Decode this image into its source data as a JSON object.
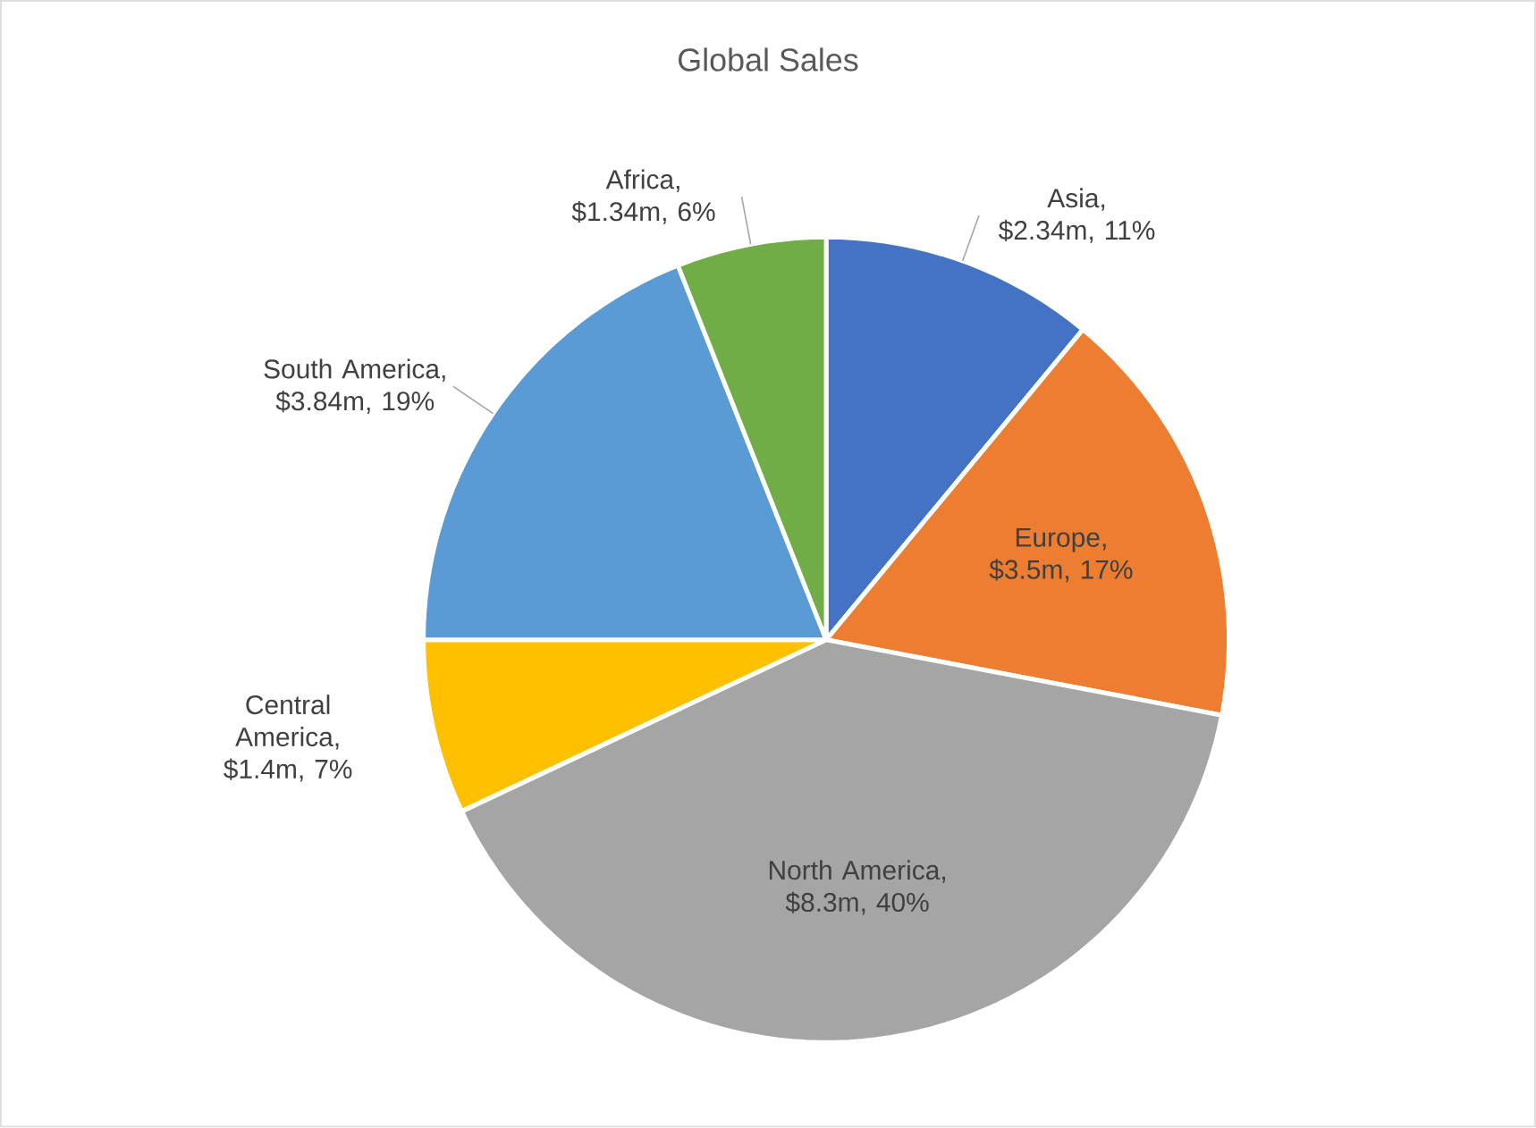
{
  "chart_data": {
    "type": "pie",
    "title": "Global Sales",
    "categories": [
      "Asia",
      "Europe",
      "North America",
      "Central America",
      "South America",
      "Africa"
    ],
    "values": [
      11,
      17,
      40,
      7,
      19,
      6
    ],
    "value_labels": [
      ", $2.34m, 11%",
      ", $3.5m, 17%",
      ", $8.3m, 40%",
      ", $1.4m, 7%",
      ", $3.84m, 19%",
      ", $1.34m, 6%"
    ],
    "colors": [
      "#4472c4",
      "#ed7d31",
      "#a5a5a5",
      "#ffc000",
      "#5b9bd5",
      "#70ad47"
    ]
  }
}
